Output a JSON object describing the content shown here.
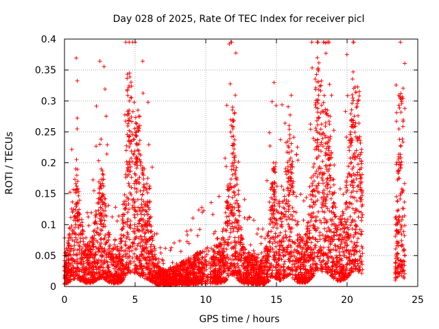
{
  "chart_data": {
    "type": "scatter",
    "title": "Day 028 of 2025, Rate Of TEC Index for receiver picl",
    "xlabel": "GPS time / hours",
    "ylabel": "ROTI / TECUs",
    "xlim": [
      0,
      25
    ],
    "ylim": [
      0,
      0.4
    ],
    "xticks": [
      "0",
      "5",
      "10",
      "15",
      "20",
      "25"
    ],
    "yticks": [
      "0",
      "0.05",
      "0.1",
      "0.15",
      "0.2",
      "0.25",
      "0.3",
      "0.35",
      "0.4"
    ],
    "grid": true,
    "marker": "+",
    "color": "#ff0000",
    "data_gap_hours": [
      21.1,
      23.4
    ],
    "peaks": [
      {
        "x": 0.8,
        "y": 0.19
      },
      {
        "x": 2.6,
        "y": 0.19
      },
      {
        "x": 4.6,
        "y": 0.345
      },
      {
        "x": 5.2,
        "y": 0.285
      },
      {
        "x": 5.9,
        "y": 0.175
      },
      {
        "x": 11.9,
        "y": 0.29
      },
      {
        "x": 14.8,
        "y": 0.2
      },
      {
        "x": 15.9,
        "y": 0.26
      },
      {
        "x": 17.9,
        "y": 0.37
      },
      {
        "x": 18.6,
        "y": 0.285
      },
      {
        "x": 20.4,
        "y": 0.262
      },
      {
        "x": 20.9,
        "y": 0.242
      },
      {
        "x": 23.8,
        "y": 0.312
      }
    ]
  }
}
